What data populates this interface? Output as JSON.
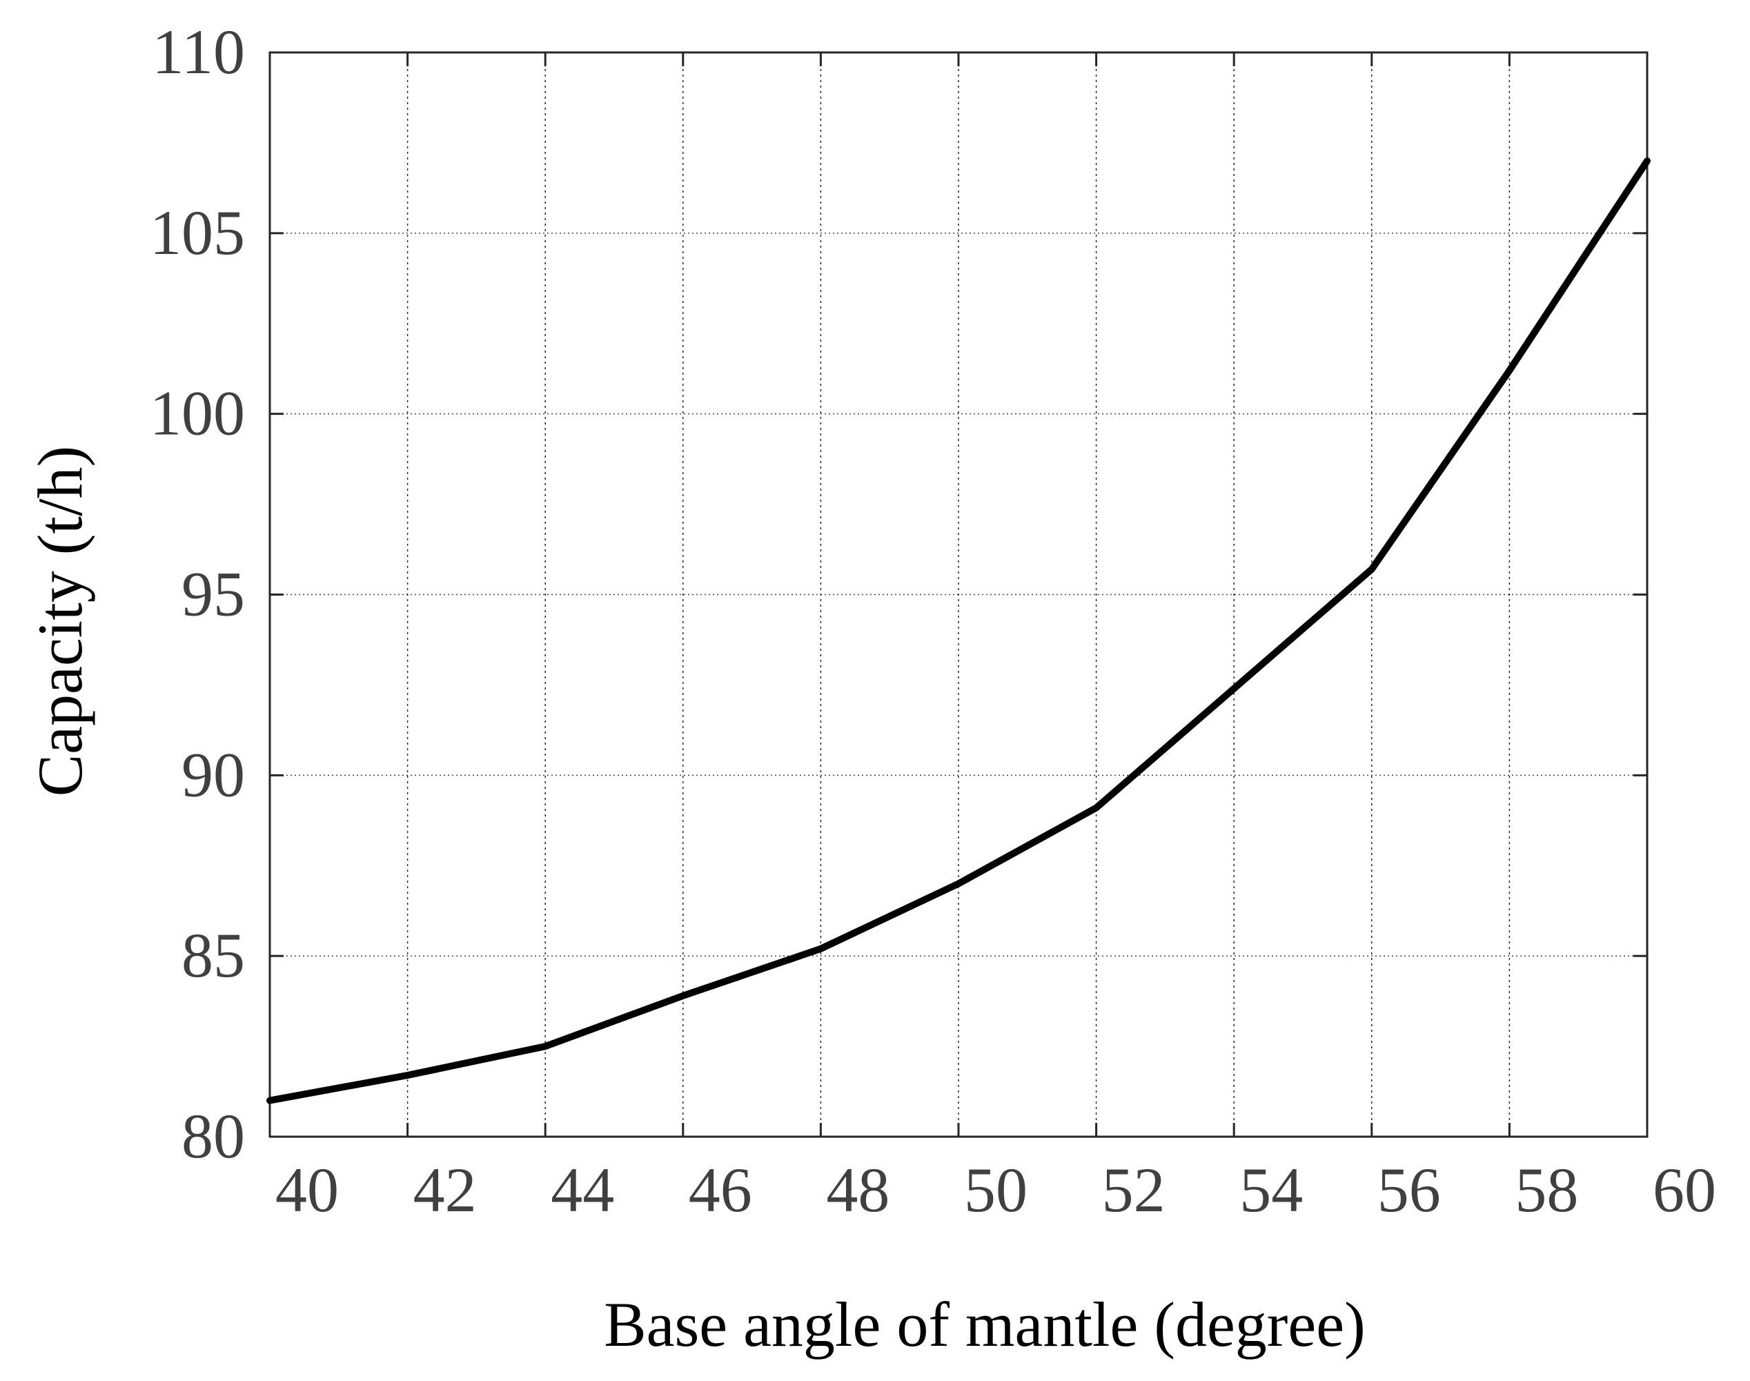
{
  "chart_data": {
    "type": "line",
    "title": "",
    "xlabel": "Base angle of mantle (degree)",
    "ylabel": "Capacity (t/h)",
    "xlim": [
      40,
      60
    ],
    "ylim": [
      80,
      110
    ],
    "x_ticks": [
      40,
      42,
      44,
      46,
      48,
      50,
      52,
      54,
      56,
      58,
      60
    ],
    "y_ticks": [
      80,
      85,
      90,
      95,
      100,
      105,
      110
    ],
    "grid": true,
    "series": [
      {
        "name": "Capacity",
        "color": "#000000",
        "x": [
          40,
          42,
          44,
          46,
          48,
          50,
          52,
          54,
          56,
          58,
          60
        ],
        "y": [
          81.0,
          81.7,
          82.5,
          83.9,
          85.2,
          87.0,
          89.1,
          92.4,
          95.7,
          101.2,
          107.0
        ]
      }
    ]
  }
}
